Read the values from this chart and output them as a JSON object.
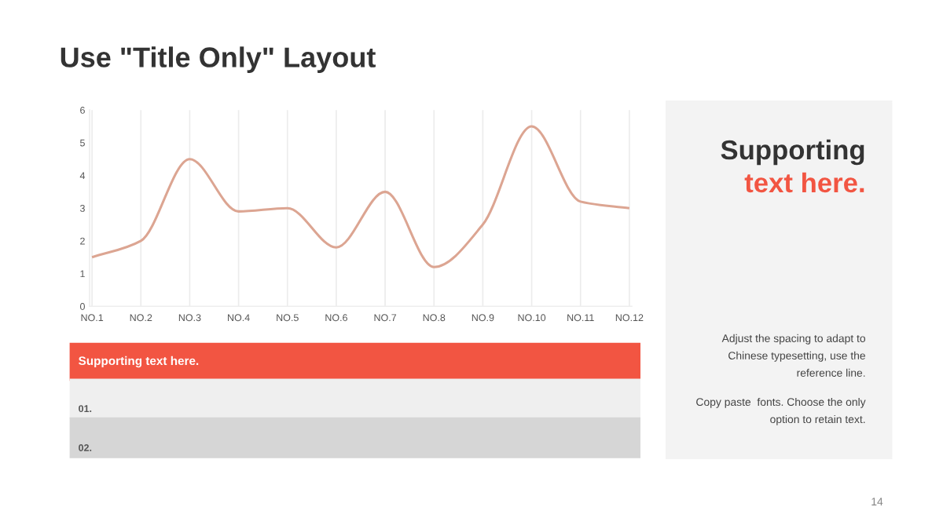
{
  "chart_data": {
    "type": "line",
    "title": "Use \"Title Only\" Layout",
    "categories": [
      "NO.1",
      "NO.2",
      "NO.3",
      "NO.4",
      "NO.5",
      "NO.6",
      "NO.7",
      "NO.8",
      "NO.9",
      "NO.10",
      "NO.11",
      "NO.12"
    ],
    "series": [
      {
        "color": "#dca592",
        "values": [
          1.5,
          2,
          4.5,
          2.9,
          3,
          1.8,
          3.5,
          1.2,
          2.5,
          5.5,
          3.2,
          3
        ]
      }
    ],
    "ylim": [
      0,
      6
    ],
    "yticks": [
      0,
      1,
      2,
      3,
      4,
      5,
      6
    ],
    "grid": "x",
    "marker": "none",
    "line_style": "solid",
    "annotations": [
      "Supporting",
      "text here.",
      "Adjust the spacing to adapt to\nChinese typesetting, use the\nreference line.",
      "Copy paste  fonts. Choose the only\noption to retain text.",
      "Supporting text here.",
      "01.",
      "02.",
      "14"
    ]
  }
}
